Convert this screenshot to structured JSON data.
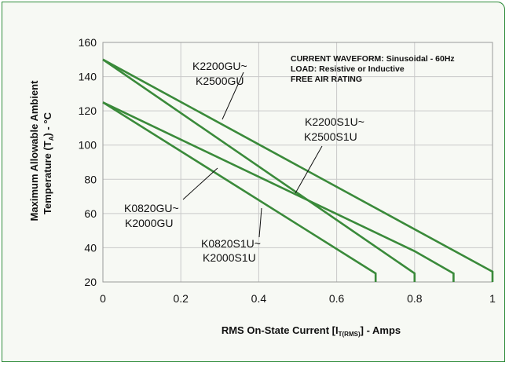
{
  "chart_data": {
    "type": "line",
    "xlim": [
      0,
      1
    ],
    "ylim": [
      20,
      160
    ],
    "x_ticks": [
      "0",
      "0.2",
      "0.4",
      "0.6",
      "0.8",
      "1"
    ],
    "y_ticks": [
      "20",
      "40",
      "60",
      "80",
      "100",
      "120",
      "140",
      "160"
    ],
    "grid": true,
    "xlabel": {
      "main": "RMS On-State Current [I",
      "sub": "T(RMS)",
      "suffix": "] - Amps"
    },
    "ylabel": {
      "line1": "Maximum Allowable Ambient",
      "line2_pre": "Temperature (T",
      "line2_sub": "A",
      "line2_post": ") - °C"
    },
    "notes": [
      "CURRENT WAVEFORM: Sinusoidal - 60Hz",
      "LOAD: Resistive or Inductive",
      "FREE AIR RATING"
    ],
    "line_color": "#3a8a3a",
    "series": [
      {
        "name": "K0820GU~ K2000GU",
        "points": [
          [
            0,
            125
          ],
          [
            0.8,
            38
          ],
          [
            0.9,
            25
          ]
        ],
        "end": [
          0.9,
          20
        ]
      },
      {
        "name": "K0820S1U~ K2000S1U",
        "points": [
          [
            0,
            125
          ],
          [
            0.7,
            25
          ]
        ],
        "end": [
          0.7,
          20
        ]
      },
      {
        "name": "K2200GU~ K2500GU",
        "points": [
          [
            0,
            150
          ],
          [
            1.0,
            26
          ]
        ],
        "end": [
          1.0,
          20
        ]
      },
      {
        "name": "K2200S1U~ K2500S1U",
        "points": [
          [
            0,
            150
          ],
          [
            0.8,
            25
          ]
        ],
        "end": [
          0.8,
          20
        ]
      }
    ],
    "annotations": [
      {
        "lines": [
          "K2200GU~",
          "K2500GU"
        ]
      },
      {
        "lines": [
          "K2200S1U~",
          "K2500S1U"
        ]
      },
      {
        "lines": [
          "K0820GU~",
          "K2000GU"
        ]
      },
      {
        "lines": [
          "K0820S1U~",
          "K2000S1U"
        ]
      }
    ]
  }
}
